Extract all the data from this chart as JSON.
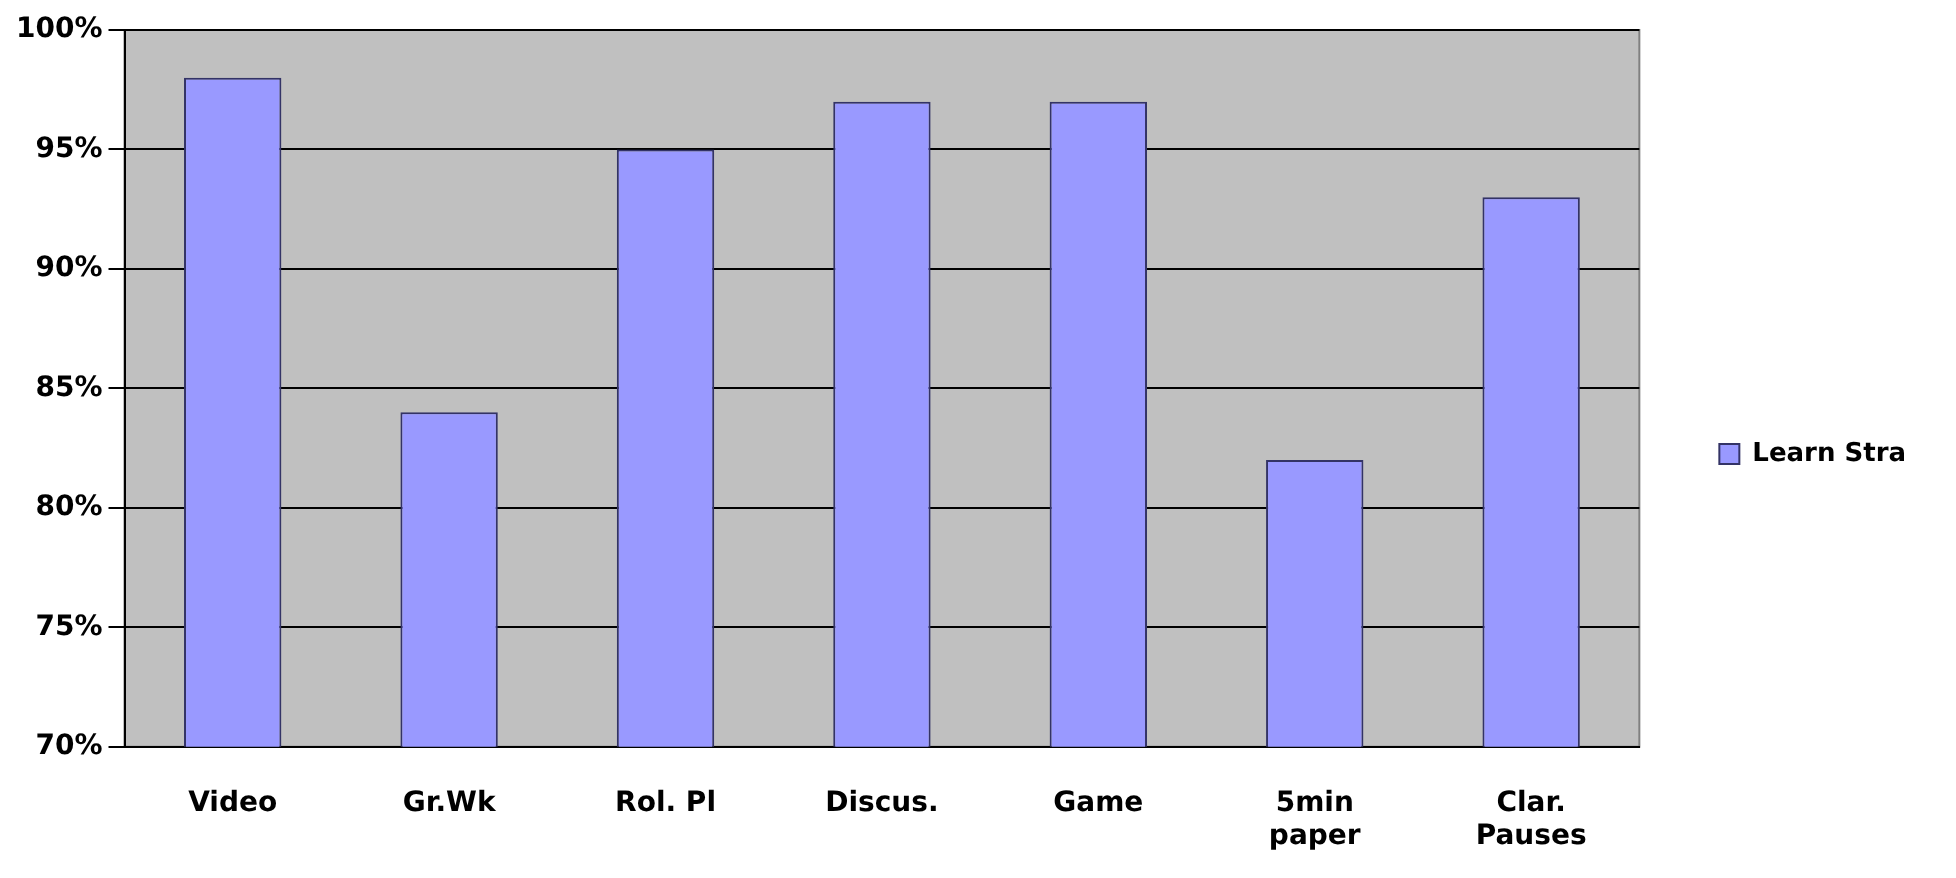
{
  "chart_data": {
    "type": "bar",
    "categories": [
      "Video",
      "Gr.Wk",
      "Rol. Pl",
      "Discus.",
      "Game",
      "5min paper",
      "Clar. Pauses"
    ],
    "series": [
      {
        "name": "Learn Stra",
        "color": "#9999ff",
        "values": [
          98,
          84,
          95,
          97,
          97,
          82,
          93
        ]
      }
    ],
    "ylim": [
      70,
      100
    ],
    "yticks": [
      {
        "value": 70,
        "label": "70%"
      },
      {
        "value": 75,
        "label": "75%"
      },
      {
        "value": 80,
        "label": "80%"
      },
      {
        "value": 85,
        "label": "85%"
      },
      {
        "value": 90,
        "label": "90%"
      },
      {
        "value": 95,
        "label": "95%"
      },
      {
        "value": 100,
        "label": "100%"
      }
    ],
    "grid": "y",
    "legend": "right"
  }
}
